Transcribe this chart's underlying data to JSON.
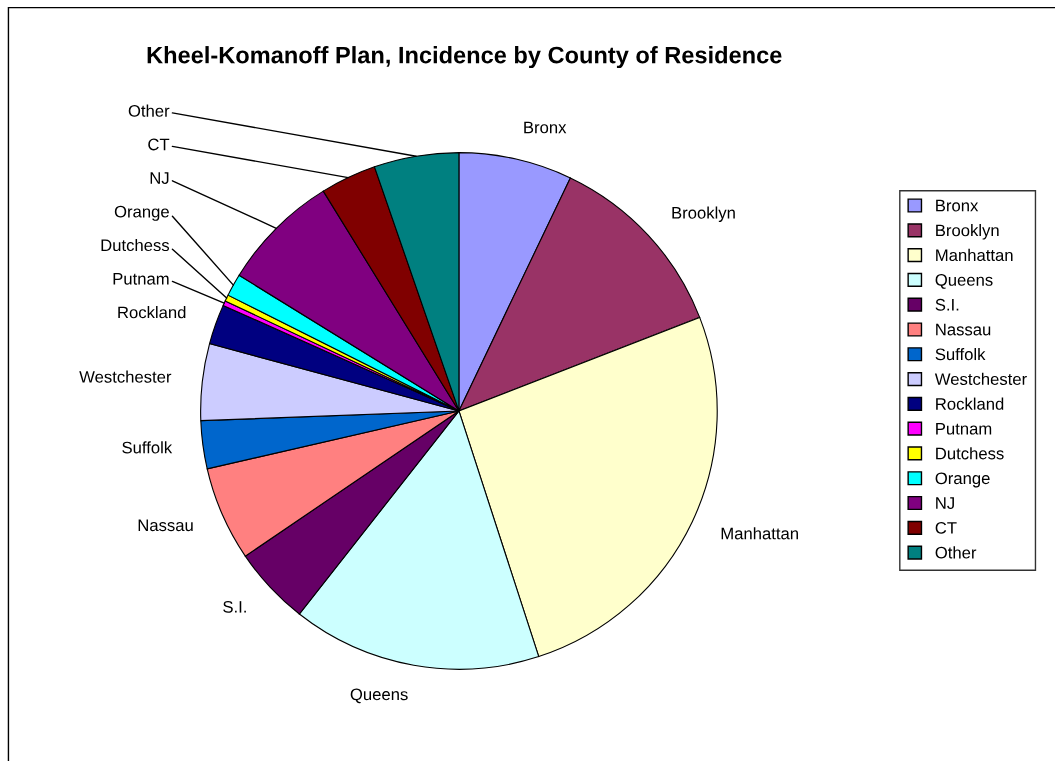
{
  "chart_data": {
    "type": "pie",
    "title": "Kheel-Komanoff Plan, Incidence by County of Residence",
    "categories": [
      "Bronx",
      "Brooklyn",
      "Manhattan",
      "Queens",
      "S.I.",
      "Nassau",
      "Suffolk",
      "Westchester",
      "Rockland",
      "Putnam",
      "Dutchess",
      "Orange",
      "NJ",
      "CT",
      "Other"
    ],
    "values": [
      7.1,
      12.0,
      25.9,
      15.6,
      4.9,
      5.9,
      3.0,
      4.8,
      2.5,
      0.3,
      0.4,
      1.4,
      7.4,
      3.5,
      5.3
    ],
    "colors": [
      "#9999ff",
      "#993366",
      "#ffffcc",
      "#ccffff",
      "#660066",
      "#ff8080",
      "#0066cc",
      "#ccccff",
      "#000080",
      "#ff00ff",
      "#ffff00",
      "#00ffff",
      "#800080",
      "#800000",
      "#008080"
    ],
    "legend": "right"
  }
}
